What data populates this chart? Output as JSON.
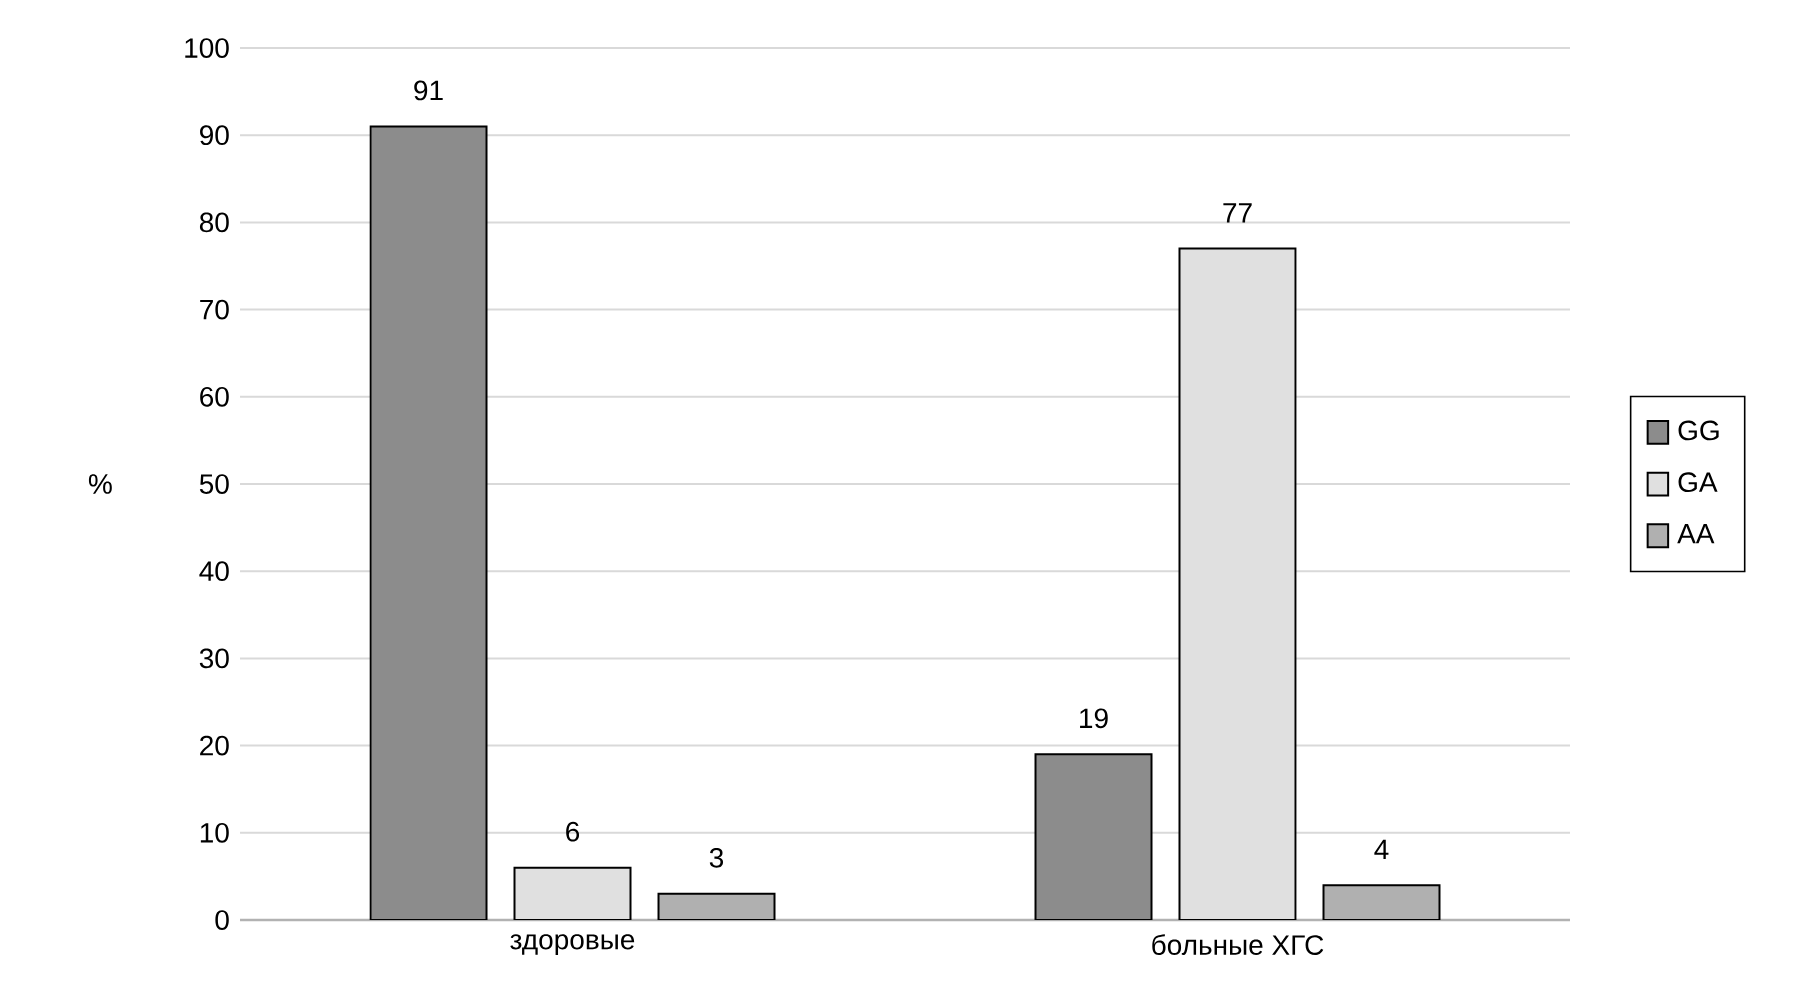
{
  "chart_data": {
    "type": "bar",
    "ylabel": "%",
    "categories": [
      "здоровые",
      "больные ХГС"
    ],
    "series": [
      {
        "name": "GG",
        "color": "#8c8c8c",
        "values": [
          91,
          19
        ]
      },
      {
        "name": "GA",
        "color": "#e0e0e0",
        "values": [
          6,
          77
        ]
      },
      {
        "name": "AA",
        "color": "#b0b0b0",
        "values": [
          3,
          4
        ]
      }
    ],
    "ylim": [
      0,
      100
    ],
    "yticks": [
      0,
      10,
      20,
      30,
      40,
      50,
      60,
      70,
      80,
      90,
      100
    ],
    "grid": "y",
    "legend": "right",
    "data_labels": true
  }
}
